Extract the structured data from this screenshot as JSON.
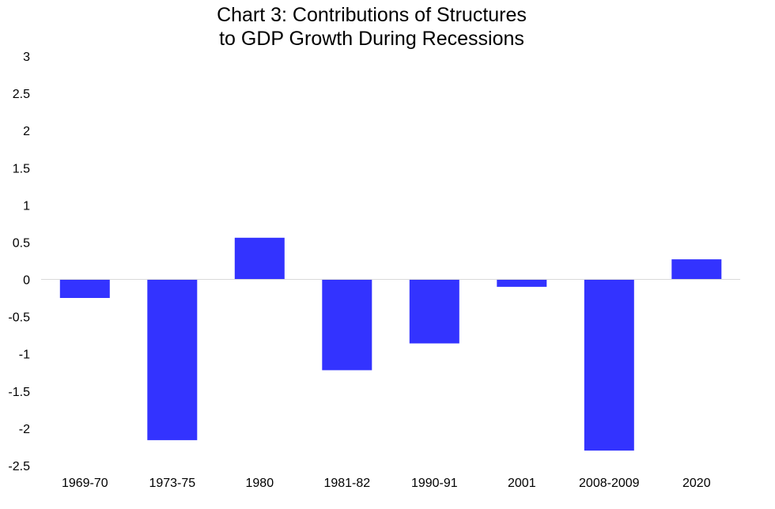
{
  "chart_data": {
    "type": "bar",
    "title_lines": [
      "Chart 3: Contributions of Structures",
      "to GDP Growth During Recessions"
    ],
    "categories": [
      "1969-70",
      "1973-75",
      "1980",
      "1981-82",
      "1990-91",
      "2001",
      "2008-2009",
      "2020"
    ],
    "values": [
      -0.25,
      -2.16,
      0.56,
      -1.22,
      -0.86,
      -0.1,
      -2.3,
      0.27
    ],
    "ylim": [
      -2.5,
      3
    ],
    "yticks": [
      3,
      2.5,
      2,
      1.5,
      1,
      0.5,
      0,
      -0.5,
      -1,
      -1.5,
      -2,
      -2.5
    ],
    "ytick_labels": [
      "3",
      "2.5",
      "2",
      "1.5",
      "1",
      "0.5",
      "0",
      "-0.5",
      "-1",
      "-1.5",
      "-2",
      "-2.5"
    ],
    "grid": false,
    "legend": "none",
    "bar_color": "#3333ff",
    "axis_color": "#d9d9d9"
  }
}
